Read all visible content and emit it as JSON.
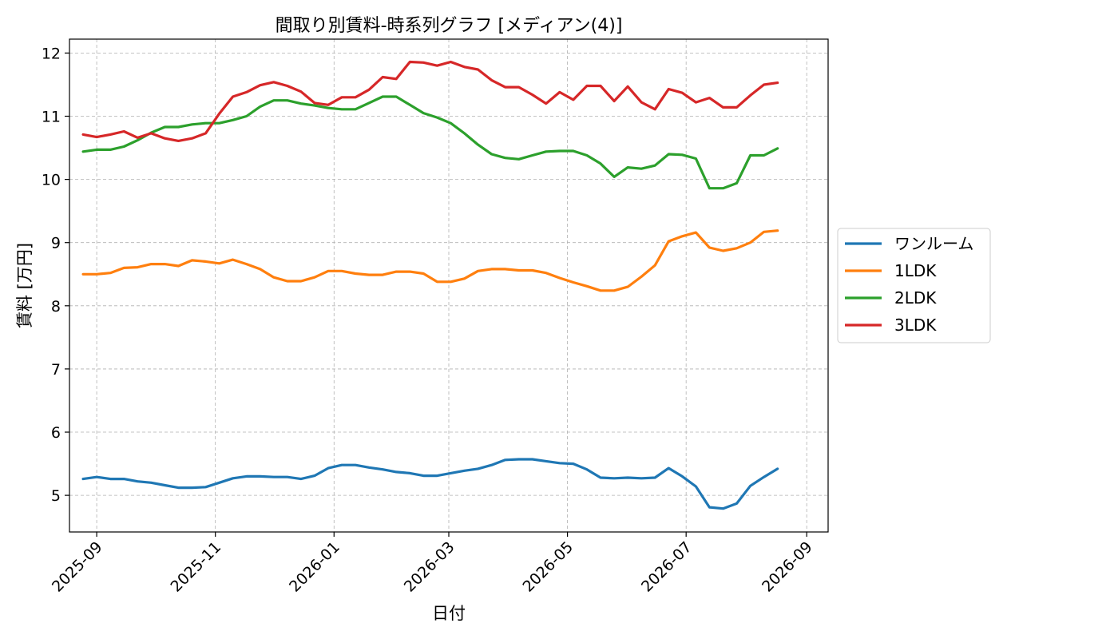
{
  "chart_data": {
    "type": "line",
    "title": "間取り別賃料-時系列グラフ [メディアン(4)]",
    "xlabel": "日付",
    "ylabel": "賃料 [万円]",
    "ylim": [
      4.42,
      12.22
    ],
    "xlim": [
      "2025-08-18",
      "2026-09-12"
    ],
    "yticks": [
      5,
      6,
      7,
      8,
      9,
      10,
      11,
      12
    ],
    "xticks": [
      "2025-09-01",
      "2025-11-01",
      "2026-01-01",
      "2026-03-01",
      "2026-05-01",
      "2026-07-01",
      "2026-09-01"
    ],
    "xtick_labels": [
      "2025-09",
      "2025-11",
      "2026-01",
      "2026-03",
      "2026-05",
      "2026-07",
      "2026-09"
    ],
    "grid": true,
    "legend_position": "right",
    "x": [
      "2025-08-25",
      "2025-09-01",
      "2025-09-08",
      "2025-09-15",
      "2025-09-22",
      "2025-09-29",
      "2025-10-06",
      "2025-10-13",
      "2025-10-20",
      "2025-10-27",
      "2025-11-03",
      "2025-11-10",
      "2025-11-17",
      "2025-11-24",
      "2025-12-01",
      "2025-12-08",
      "2025-12-15",
      "2025-12-22",
      "2025-12-29",
      "2026-01-05",
      "2026-01-12",
      "2026-01-19",
      "2026-01-26",
      "2026-02-02",
      "2026-02-09",
      "2026-02-16",
      "2026-02-23",
      "2026-03-02",
      "2026-03-09",
      "2026-03-16",
      "2026-03-23",
      "2026-03-30",
      "2026-04-06",
      "2026-04-13",
      "2026-04-20",
      "2026-04-27",
      "2026-05-04",
      "2026-05-11",
      "2026-05-18",
      "2026-05-25",
      "2026-06-01",
      "2026-06-08",
      "2026-06-15",
      "2026-06-22",
      "2026-06-29",
      "2026-07-06",
      "2026-07-13",
      "2026-07-20",
      "2026-07-27",
      "2026-08-03",
      "2026-08-10",
      "2026-08-17"
    ],
    "series": [
      {
        "name": "ワンルーム",
        "color": "#1f77b4",
        "values": [
          5.26,
          5.29,
          5.26,
          5.26,
          5.22,
          5.2,
          5.16,
          5.12,
          5.12,
          5.13,
          5.2,
          5.27,
          5.3,
          5.3,
          5.29,
          5.29,
          5.26,
          5.31,
          5.43,
          5.48,
          5.48,
          5.44,
          5.41,
          5.37,
          5.35,
          5.31,
          5.31,
          5.35,
          5.39,
          5.42,
          5.48,
          5.56,
          5.57,
          5.57,
          5.54,
          5.51,
          5.5,
          5.41,
          5.28,
          5.27,
          5.28,
          5.27,
          5.28,
          5.43,
          5.3,
          5.14,
          4.81,
          4.79,
          4.87,
          5.15,
          5.29,
          5.42
        ]
      },
      {
        "name": "1LDK",
        "color": "#ff7f0e",
        "values": [
          8.5,
          8.5,
          8.52,
          8.6,
          8.61,
          8.66,
          8.66,
          8.63,
          8.72,
          8.7,
          8.67,
          8.73,
          8.66,
          8.58,
          8.45,
          8.39,
          8.39,
          8.45,
          8.55,
          8.55,
          8.51,
          8.49,
          8.49,
          8.54,
          8.54,
          8.51,
          8.38,
          8.38,
          8.43,
          8.55,
          8.58,
          8.58,
          8.56,
          8.56,
          8.52,
          8.44,
          8.37,
          8.31,
          8.24,
          8.24,
          8.3,
          8.46,
          8.64,
          9.02,
          9.1,
          9.16,
          8.92,
          8.87,
          8.91,
          9.0,
          9.17,
          9.19
        ]
      },
      {
        "name": "2LDK",
        "color": "#2ca02c",
        "values": [
          10.44,
          10.47,
          10.47,
          10.52,
          10.62,
          10.74,
          10.83,
          10.83,
          10.87,
          10.89,
          10.89,
          10.94,
          11.0,
          11.15,
          11.25,
          11.25,
          11.2,
          11.17,
          11.13,
          11.11,
          11.11,
          11.21,
          11.31,
          11.31,
          11.18,
          11.05,
          10.98,
          10.89,
          10.73,
          10.55,
          10.4,
          10.34,
          10.32,
          10.38,
          10.44,
          10.45,
          10.45,
          10.38,
          10.25,
          10.04,
          10.19,
          10.17,
          10.22,
          10.4,
          10.39,
          10.33,
          9.86,
          9.86,
          9.94,
          10.38,
          10.38,
          10.49
        ]
      },
      {
        "name": "3LDK",
        "color": "#d62728",
        "values": [
          10.71,
          10.67,
          10.71,
          10.76,
          10.66,
          10.73,
          10.65,
          10.61,
          10.65,
          10.73,
          11.04,
          11.31,
          11.38,
          11.49,
          11.54,
          11.48,
          11.39,
          11.21,
          11.18,
          11.3,
          11.3,
          11.42,
          11.62,
          11.59,
          11.86,
          11.85,
          11.8,
          11.86,
          11.78,
          11.74,
          11.57,
          11.46,
          11.46,
          11.34,
          11.2,
          11.38,
          11.26,
          11.48,
          11.48,
          11.24,
          11.47,
          11.22,
          11.11,
          11.43,
          11.37,
          11.22,
          11.29,
          11.14,
          11.14,
          11.33,
          11.5,
          11.53
        ]
      }
    ]
  }
}
